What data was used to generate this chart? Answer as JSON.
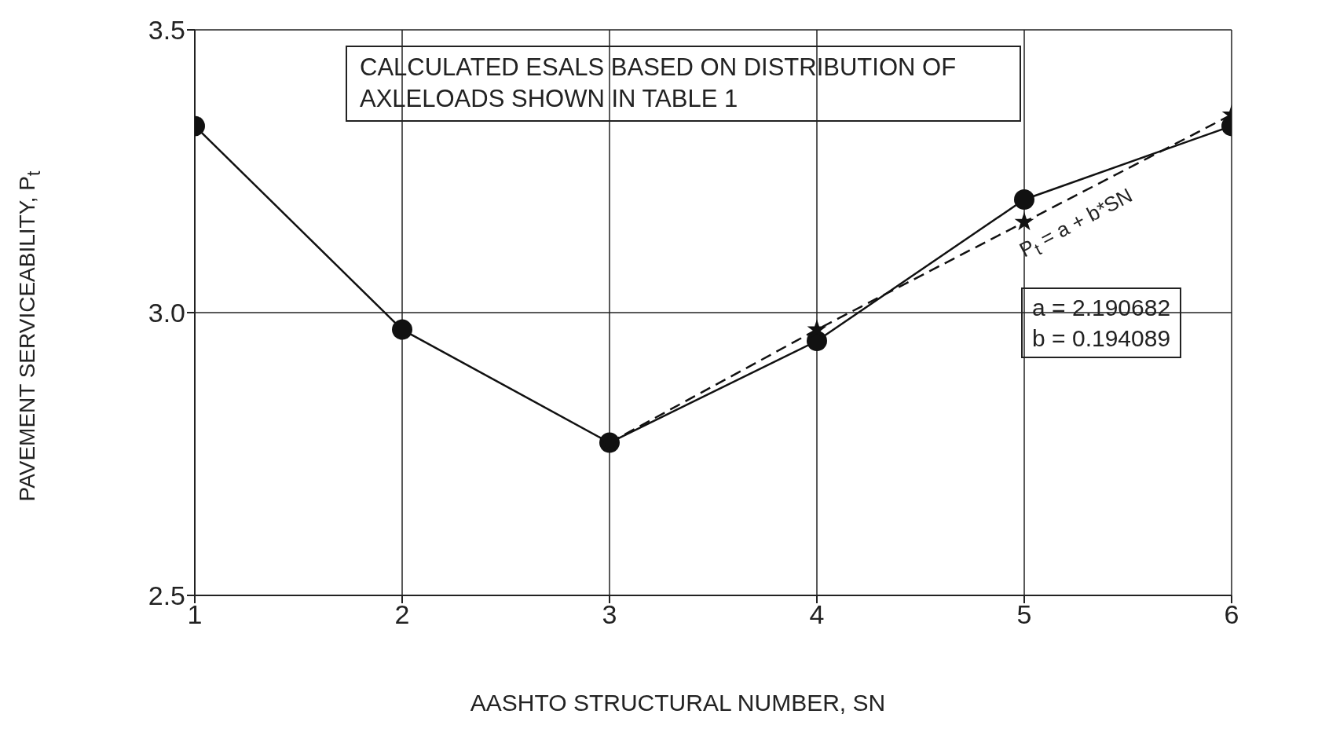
{
  "chart_data": {
    "type": "line",
    "xlabel": "AASHTO STRUCTURAL NUMBER, SN",
    "ylabel": "PAVEMENT SERVICEABILITY, P$_{t}$",
    "x": [
      1,
      2,
      3,
      4,
      5,
      6
    ],
    "series": [
      {
        "color": "#111111",
        "values": [
          3.33,
          2.97,
          2.77,
          2.95,
          3.2,
          3.33
        ],
        "marker": "circle",
        "line_style": "solid"
      },
      {
        "color": "#111111",
        "values": [
          null,
          null,
          2.77,
          2.97,
          3.16,
          3.35
        ],
        "marker": "star",
        "line_style": "dashed"
      }
    ],
    "xlim": [
      1,
      6
    ],
    "xticks": [
      1,
      2,
      3,
      4,
      5,
      6
    ],
    "ylim": [
      2.5,
      3.5
    ],
    "yticks": [
      {
        "value": 2.5,
        "label": "2.5"
      },
      {
        "value": 3.0,
        "label": "3.0"
      },
      {
        "value": 3.5,
        "label": "3.5"
      }
    ],
    "grid": true,
    "legend": false,
    "annotations": [
      "CALCULATED ESALS BASED ON DISTRIBUTION OF AXLELOADS SHOWN IN TABLE 1",
      "P$_{t}$ = a + b*SN",
      "a = 2.190682",
      "b = 0.194089"
    ]
  }
}
